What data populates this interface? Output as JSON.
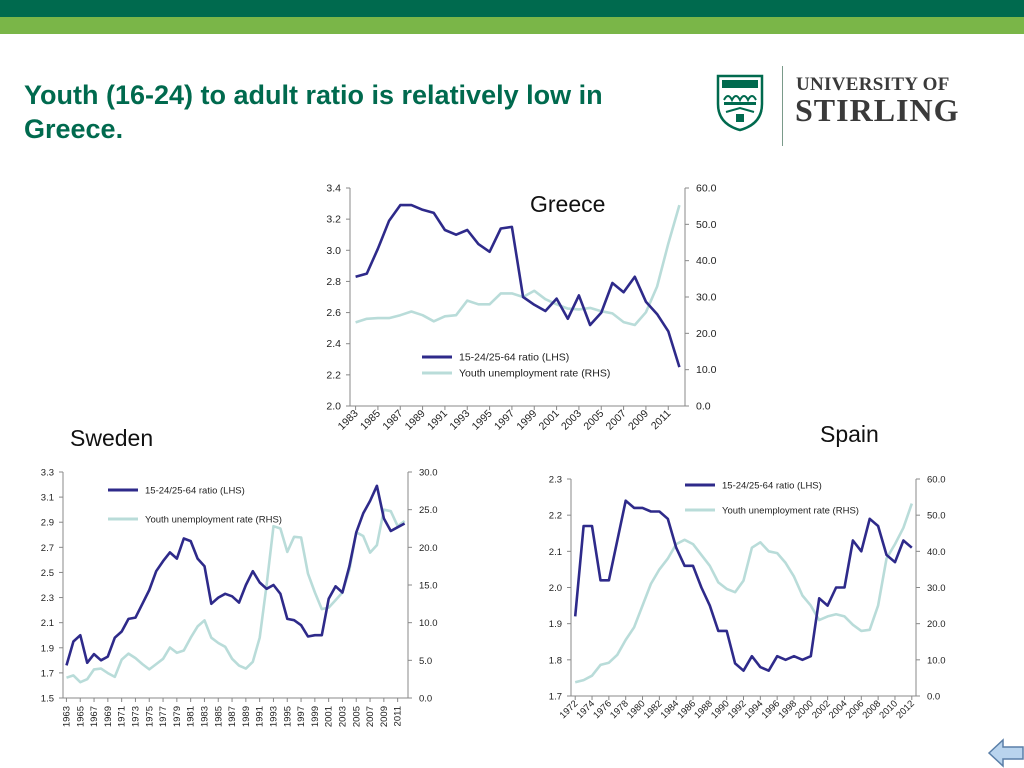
{
  "slide": {
    "title": "Youth (16-24) to adult ratio is relatively low in Greece.",
    "logo": {
      "line1": "UNIVERSITY OF",
      "line2": "STIRLING"
    },
    "colors": {
      "header_dark": "#006a4e",
      "header_light": "#7ab648",
      "title": "#006a4e",
      "ratio_line": "#2e2a8a",
      "unemployment_line": "#b9dcd9"
    },
    "back_button_icon": "back-arrow-icon"
  },
  "chart_data": [
    {
      "id": "greece",
      "title": "Greece",
      "type": "line",
      "x_labels": [
        "1983",
        "1985",
        "1987",
        "1989",
        "1991",
        "1993",
        "1995",
        "1997",
        "1999",
        "2001",
        "2003",
        "2005",
        "2007",
        "2009",
        "2011"
      ],
      "x": [
        1983,
        1984,
        1985,
        1986,
        1987,
        1988,
        1989,
        1990,
        1991,
        1992,
        1993,
        1994,
        1995,
        1996,
        1997,
        1998,
        1999,
        2000,
        2001,
        2002,
        2003,
        2004,
        2005,
        2006,
        2007,
        2008,
        2009,
        2010,
        2011,
        2012
      ],
      "left_axis": {
        "ylim": [
          2.0,
          3.4
        ],
        "ticks": [
          "2.0",
          "2.2",
          "2.4",
          "2.6",
          "2.8",
          "3.0",
          "3.2",
          "3.4"
        ]
      },
      "right_axis": {
        "ylim": [
          0,
          60
        ],
        "ticks": [
          "0.0",
          "10.0",
          "20.0",
          "30.0",
          "40.0",
          "50.0",
          "60.0"
        ]
      },
      "legend_position": "center-bottom",
      "series": [
        {
          "name": "15-24/25-64 ratio (LHS)",
          "axis": "left",
          "color": "#2e2a8a",
          "values": [
            2.83,
            2.85,
            3.01,
            3.19,
            3.29,
            3.29,
            3.26,
            3.24,
            3.13,
            3.1,
            3.13,
            3.04,
            2.99,
            3.14,
            3.15,
            2.7,
            2.65,
            2.61,
            2.69,
            2.56,
            2.71,
            2.52,
            2.6,
            2.79,
            2.73,
            2.83,
            2.67,
            2.59,
            2.48,
            2.25
          ]
        },
        {
          "name": "Youth unemployment rate (RHS)",
          "axis": "right",
          "color": "#b9dcd9",
          "values": [
            23.0,
            24.0,
            24.2,
            24.2,
            25.0,
            26.0,
            25.0,
            23.3,
            24.7,
            25.0,
            29.0,
            28.0,
            28.0,
            31.0,
            31.0,
            30.0,
            31.7,
            29.4,
            28.0,
            26.8,
            26.6,
            27.0,
            26.1,
            25.5,
            23.1,
            22.3,
            25.8,
            32.9,
            44.7,
            55.3
          ]
        }
      ]
    },
    {
      "id": "sweden",
      "title": "Sweden",
      "type": "line",
      "x_labels": [
        "1963",
        "1965",
        "1967",
        "1969",
        "1971",
        "1973",
        "1975",
        "1977",
        "1979",
        "1981",
        "1983",
        "1985",
        "1987",
        "1989",
        "1991",
        "1993",
        "1995",
        "1997",
        "1999",
        "2001",
        "2003",
        "2005",
        "2007",
        "2009",
        "2011"
      ],
      "x": [
        1963,
        1964,
        1965,
        1966,
        1967,
        1968,
        1969,
        1970,
        1971,
        1972,
        1973,
        1974,
        1975,
        1976,
        1977,
        1978,
        1979,
        1980,
        1981,
        1982,
        1983,
        1984,
        1985,
        1986,
        1987,
        1988,
        1989,
        1990,
        1991,
        1992,
        1993,
        1994,
        1995,
        1996,
        1997,
        1998,
        1999,
        2000,
        2001,
        2002,
        2003,
        2004,
        2005,
        2006,
        2007,
        2008,
        2009,
        2010,
        2011,
        2012
      ],
      "left_axis": {
        "ylim": [
          1.5,
          3.3
        ],
        "ticks": [
          "1.5",
          "1.7",
          "1.9",
          "2.1",
          "2.3",
          "2.5",
          "2.7",
          "2.9",
          "3.1",
          "3.3"
        ]
      },
      "right_axis": {
        "ylim": [
          0,
          30
        ],
        "ticks": [
          "0.0",
          "5.0",
          "10.0",
          "15.0",
          "20.0",
          "25.0",
          "30.0"
        ]
      },
      "legend_position": "top-left",
      "series": [
        {
          "name": "15-24/25-64 ratio (LHS)",
          "axis": "left",
          "color": "#2e2a8a",
          "values": [
            1.76,
            1.95,
            2.0,
            1.78,
            1.85,
            1.8,
            1.83,
            1.98,
            2.03,
            2.13,
            2.14,
            2.25,
            2.36,
            2.51,
            2.59,
            2.66,
            2.61,
            2.77,
            2.75,
            2.61,
            2.55,
            2.25,
            2.3,
            2.33,
            2.31,
            2.26,
            2.4,
            2.51,
            2.42,
            2.37,
            2.4,
            2.33,
            2.13,
            2.12,
            2.08,
            1.99,
            2.0,
            2.0,
            2.29,
            2.39,
            2.34,
            2.55,
            2.82,
            2.97,
            3.07,
            3.19,
            2.93,
            2.83,
            2.86,
            2.89
          ]
        },
        {
          "name": "Youth unemployment rate (RHS)",
          "axis": "right",
          "color": "#b9dcd9",
          "values": [
            2.7,
            3.0,
            2.1,
            2.5,
            3.8,
            3.9,
            3.3,
            2.8,
            5.1,
            5.9,
            5.3,
            4.5,
            3.8,
            4.5,
            5.2,
            6.7,
            6.0,
            6.3,
            8.0,
            9.5,
            10.3,
            8.0,
            7.3,
            6.8,
            5.2,
            4.3,
            3.9,
            4.8,
            8.0,
            15.0,
            22.8,
            22.5,
            19.4,
            21.4,
            21.3,
            16.5,
            14.0,
            11.8,
            12.0,
            13.0,
            14.0,
            17.0,
            22.0,
            21.5,
            19.3,
            20.3,
            25.0,
            24.8,
            22.8,
            23.5
          ]
        }
      ]
    },
    {
      "id": "spain",
      "title": "Spain",
      "type": "line",
      "x_labels": [
        "1972",
        "1974",
        "1976",
        "1978",
        "1980",
        "1982",
        "1984",
        "1986",
        "1988",
        "1990",
        "1992",
        "1994",
        "1996",
        "1998",
        "2000",
        "2002",
        "2004",
        "2006",
        "2008",
        "2010",
        "2012"
      ],
      "x": [
        1972,
        1973,
        1974,
        1975,
        1976,
        1977,
        1978,
        1979,
        1980,
        1981,
        1982,
        1983,
        1984,
        1985,
        1986,
        1987,
        1988,
        1989,
        1990,
        1991,
        1992,
        1993,
        1994,
        1995,
        1996,
        1997,
        1998,
        1999,
        2000,
        2001,
        2002,
        2003,
        2004,
        2005,
        2006,
        2007,
        2008,
        2009,
        2010,
        2011,
        2012
      ],
      "left_axis": {
        "ylim": [
          1.7,
          2.3
        ],
        "ticks": [
          "1.7",
          "1.8",
          "1.9",
          "2.0",
          "2.1",
          "2.2",
          "2.3"
        ]
      },
      "right_axis": {
        "ylim": [
          0,
          60
        ],
        "ticks": [
          "0.0",
          "10.0",
          "20.0",
          "30.0",
          "40.0",
          "50.0",
          "60.0"
        ]
      },
      "legend_position": "top-center",
      "series": [
        {
          "name": "15-24/25-64 ratio (LHS)",
          "axis": "left",
          "color": "#2e2a8a",
          "values": [
            1.92,
            2.17,
            2.17,
            2.02,
            2.02,
            2.13,
            2.24,
            2.22,
            2.22,
            2.21,
            2.21,
            2.19,
            2.11,
            2.06,
            2.06,
            2.0,
            1.95,
            1.88,
            1.88,
            1.79,
            1.77,
            1.81,
            1.78,
            1.77,
            1.81,
            1.8,
            1.81,
            1.8,
            1.81,
            1.97,
            1.95,
            2.0,
            2.0,
            2.13,
            2.1,
            2.19,
            2.17,
            2.09,
            2.07,
            2.13,
            2.11
          ]
        },
        {
          "name": "Youth unemployment rate (RHS)",
          "axis": "right",
          "color": "#b9dcd9",
          "values": [
            3.8,
            4.4,
            5.6,
            8.6,
            9.2,
            11.4,
            15.5,
            19.0,
            25.0,
            31.0,
            35.0,
            38.0,
            42.0,
            43.2,
            42.0,
            39.0,
            36.0,
            31.4,
            29.6,
            28.7,
            31.9,
            41.0,
            42.5,
            40.0,
            39.5,
            36.8,
            33.0,
            27.8,
            25.0,
            21.0,
            22.0,
            22.6,
            22.0,
            19.7,
            18.0,
            18.3,
            25.0,
            38.0,
            42.0,
            46.5,
            53.2
          ]
        }
      ]
    }
  ]
}
